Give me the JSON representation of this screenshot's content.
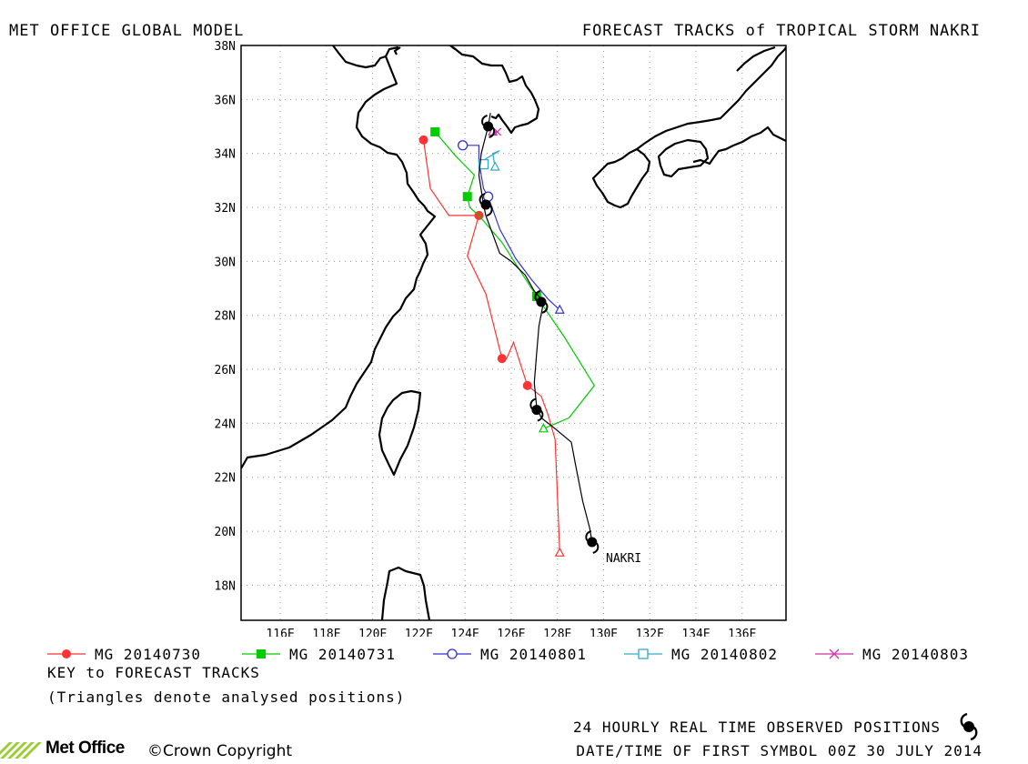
{
  "header": {
    "left": "MET OFFICE GLOBAL MODEL",
    "right": "FORECAST TRACKS of TROPICAL STORM NAKRI"
  },
  "chart_data": {
    "type": "line",
    "title": "FORECAST TRACKS of TROPICAL STORM NAKRI",
    "xlim": [
      114.3,
      137.9
    ],
    "ylim": [
      16.7,
      38.0
    ],
    "x_ticks": [
      "116E",
      "118E",
      "120E",
      "122E",
      "124E",
      "126E",
      "128E",
      "130E",
      "132E",
      "134E",
      "136E"
    ],
    "x_tick_values": [
      116,
      118,
      120,
      122,
      124,
      126,
      128,
      130,
      132,
      134,
      136
    ],
    "y_ticks": [
      "18N",
      "20N",
      "22N",
      "24N",
      "26N",
      "28N",
      "30N",
      "32N",
      "34N",
      "36N",
      "38N"
    ],
    "y_tick_values": [
      18,
      20,
      22,
      24,
      26,
      28,
      30,
      32,
      34,
      36,
      38
    ],
    "grid": true,
    "storm_label": "NAKRI",
    "observed_track": {
      "line": [
        [
          129.5,
          19.6
        ],
        [
          129.4,
          20.1
        ],
        [
          129.1,
          21.1
        ],
        [
          128.8,
          22.4
        ],
        [
          128.6,
          23.3
        ],
        [
          127.9,
          23.8
        ],
        [
          127.3,
          24.2
        ],
        [
          127.1,
          24.6
        ],
        [
          127.0,
          25.5
        ],
        [
          127.1,
          26.6
        ],
        [
          127.2,
          27.6
        ],
        [
          127.4,
          28.5
        ],
        [
          127.0,
          28.9
        ],
        [
          126.6,
          29.5
        ],
        [
          126.0,
          30.0
        ],
        [
          125.5,
          30.3
        ],
        [
          125.2,
          31.0
        ],
        [
          124.9,
          31.7
        ],
        [
          124.8,
          32.1
        ],
        [
          124.6,
          33.2
        ],
        [
          124.7,
          34.0
        ],
        [
          125.0,
          35.0
        ],
        [
          125.1,
          35.5
        ]
      ],
      "symbols": [
        [
          129.5,
          19.6
        ],
        [
          127.1,
          24.5
        ],
        [
          127.3,
          28.5
        ],
        [
          124.9,
          32.1
        ],
        [
          125.0,
          35.0
        ]
      ]
    },
    "series": [
      {
        "name": "MG 20140730",
        "color": "#ff3333",
        "marker": "filled-circle",
        "line": [
          [
            128.1,
            19.2
          ],
          [
            127.9,
            23.4
          ],
          [
            127.6,
            24.3
          ],
          [
            127.3,
            25.0
          ],
          [
            126.7,
            25.4
          ],
          [
            126.1,
            27.0
          ],
          [
            125.8,
            26.4
          ],
          [
            125.6,
            26.4
          ],
          [
            124.9,
            28.8
          ],
          [
            124.1,
            30.2
          ],
          [
            124.6,
            31.7
          ],
          [
            123.3,
            31.7
          ],
          [
            122.5,
            32.7
          ],
          [
            122.2,
            34.5
          ]
        ],
        "markers": [
          [
            126.7,
            25.4
          ],
          [
            125.6,
            26.4
          ],
          [
            124.6,
            31.7
          ],
          [
            122.2,
            34.5
          ]
        ],
        "analysed": [
          [
            128.1,
            19.2
          ]
        ]
      },
      {
        "name": "MG 20140731",
        "color": "#00cc00",
        "marker": "filled-square",
        "line": [
          [
            127.4,
            23.8
          ],
          [
            128.5,
            24.2
          ],
          [
            129.6,
            25.4
          ],
          [
            128.3,
            27.2
          ],
          [
            127.1,
            28.7
          ],
          [
            125.6,
            30.7
          ],
          [
            124.6,
            31.7
          ],
          [
            124.2,
            32.0
          ],
          [
            124.1,
            32.4
          ],
          [
            124.4,
            33.2
          ],
          [
            123.6,
            33.9
          ],
          [
            122.7,
            34.8
          ]
        ],
        "markers": [
          [
            127.1,
            28.7
          ],
          [
            124.1,
            32.4
          ],
          [
            122.7,
            34.8
          ]
        ],
        "analysed": [
          [
            127.4,
            23.8
          ]
        ]
      },
      {
        "name": "MG 20140801",
        "color": "#3333cc",
        "marker": "open-circle",
        "line": [
          [
            128.1,
            28.2
          ],
          [
            127.6,
            28.6
          ],
          [
            126.9,
            29.3
          ],
          [
            126.2,
            30.1
          ],
          [
            125.5,
            31.2
          ],
          [
            125.0,
            32.4
          ],
          [
            124.8,
            32.7
          ],
          [
            124.6,
            33.7
          ],
          [
            124.6,
            34.3
          ],
          [
            123.9,
            34.3
          ]
        ],
        "markers": [
          [
            125.0,
            32.4
          ],
          [
            123.9,
            34.3
          ]
        ],
        "analysed": [
          [
            128.1,
            28.2
          ]
        ]
      },
      {
        "name": "MG 20140802",
        "color": "#33aacc",
        "marker": "open-square",
        "line": [
          [
            125.3,
            33.5
          ],
          [
            125.2,
            34.0
          ],
          [
            125.5,
            34.1
          ],
          [
            124.9,
            33.8
          ],
          [
            124.8,
            33.6
          ]
        ],
        "markers": [
          [
            124.8,
            33.6
          ]
        ],
        "analysed": [
          [
            125.3,
            33.5
          ]
        ]
      },
      {
        "name": "MG 20140803",
        "color": "#cc33aa",
        "marker": "cross",
        "line": [
          [
            125.2,
            34.8
          ],
          [
            125.4,
            34.8
          ]
        ],
        "markers": [
          [
            125.4,
            34.8
          ]
        ],
        "analysed": [
          [
            125.2,
            34.8
          ]
        ]
      }
    ]
  },
  "key": {
    "title": "KEY to FORECAST TRACKS",
    "note": "(Triangles denote analysed positions)"
  },
  "footer": {
    "observed": "24 HOURLY REAL TIME OBSERVED POSITIONS",
    "datetime": "DATE/TIME OF FIRST SYMBOL 00Z 30 JULY 2014",
    "copyright": "©Crown Copyright",
    "logo_text": "Met Office"
  }
}
